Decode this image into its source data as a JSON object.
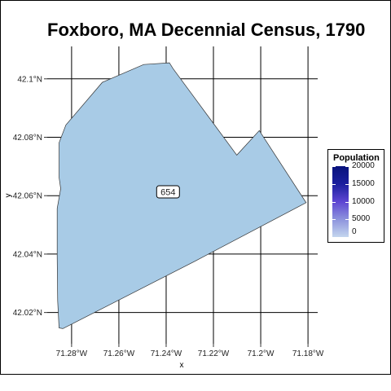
{
  "title": "Foxboro, MA Decennial Census, 1790",
  "map": {
    "x_axis_label": "x",
    "y_axis_label": "y",
    "x_ticks": [
      {
        "value": -71.28,
        "label": "71.28°W"
      },
      {
        "value": -71.26,
        "label": "71.26°W"
      },
      {
        "value": -71.24,
        "label": "71.24°W"
      },
      {
        "value": -71.22,
        "label": "71.22°W"
      },
      {
        "value": -71.2,
        "label": "71.2°W"
      },
      {
        "value": -71.18,
        "label": "71.18°W"
      }
    ],
    "y_ticks": [
      {
        "value": 42.02,
        "label": "42.02°N"
      },
      {
        "value": 42.04,
        "label": "42.04°N"
      },
      {
        "value": 42.06,
        "label": "42.06°N"
      },
      {
        "value": 42.08,
        "label": "42.08°N"
      },
      {
        "value": 42.1,
        "label": "42.1°N"
      }
    ],
    "xlim": [
      -71.2903,
      -71.1759
    ],
    "ylim": [
      42.0093,
      42.1111
    ],
    "region": {
      "name": "Foxboro",
      "population": 654,
      "label": "654",
      "fill_color": "#a8cbe6",
      "outline_color": "#333333",
      "boundary": [
        [
          -71.2853,
          42.0147
        ],
        [
          -71.2859,
          42.024
        ],
        [
          -71.2861,
          42.039
        ],
        [
          -71.2861,
          42.0556
        ],
        [
          -71.2846,
          42.0624
        ],
        [
          -71.2853,
          42.0663
        ],
        [
          -71.2853,
          42.0781
        ],
        [
          -71.2824,
          42.0842
        ],
        [
          -71.267,
          42.0988
        ],
        [
          -71.2495,
          42.1049
        ],
        [
          -71.2386,
          42.1055
        ],
        [
          -71.2371,
          42.1035
        ],
        [
          -71.2101,
          42.0739
        ],
        [
          -71.2006,
          42.0823
        ],
        [
          -71.1808,
          42.0576
        ],
        [
          -71.228,
          42.0375
        ],
        [
          -71.2837,
          42.0145
        ]
      ]
    }
  },
  "legend": {
    "title": "Population",
    "ticks": [
      {
        "value": 20000,
        "label": "20000"
      },
      {
        "value": 15000,
        "label": "15000"
      },
      {
        "value": 10000,
        "label": "10000"
      },
      {
        "value": 5000,
        "label": "5000"
      },
      {
        "value": 0,
        "label": "0"
      }
    ],
    "range": [
      0,
      20000
    ],
    "colors": [
      "#08127c",
      "#5d45d2",
      "#c4d6ee"
    ]
  }
}
